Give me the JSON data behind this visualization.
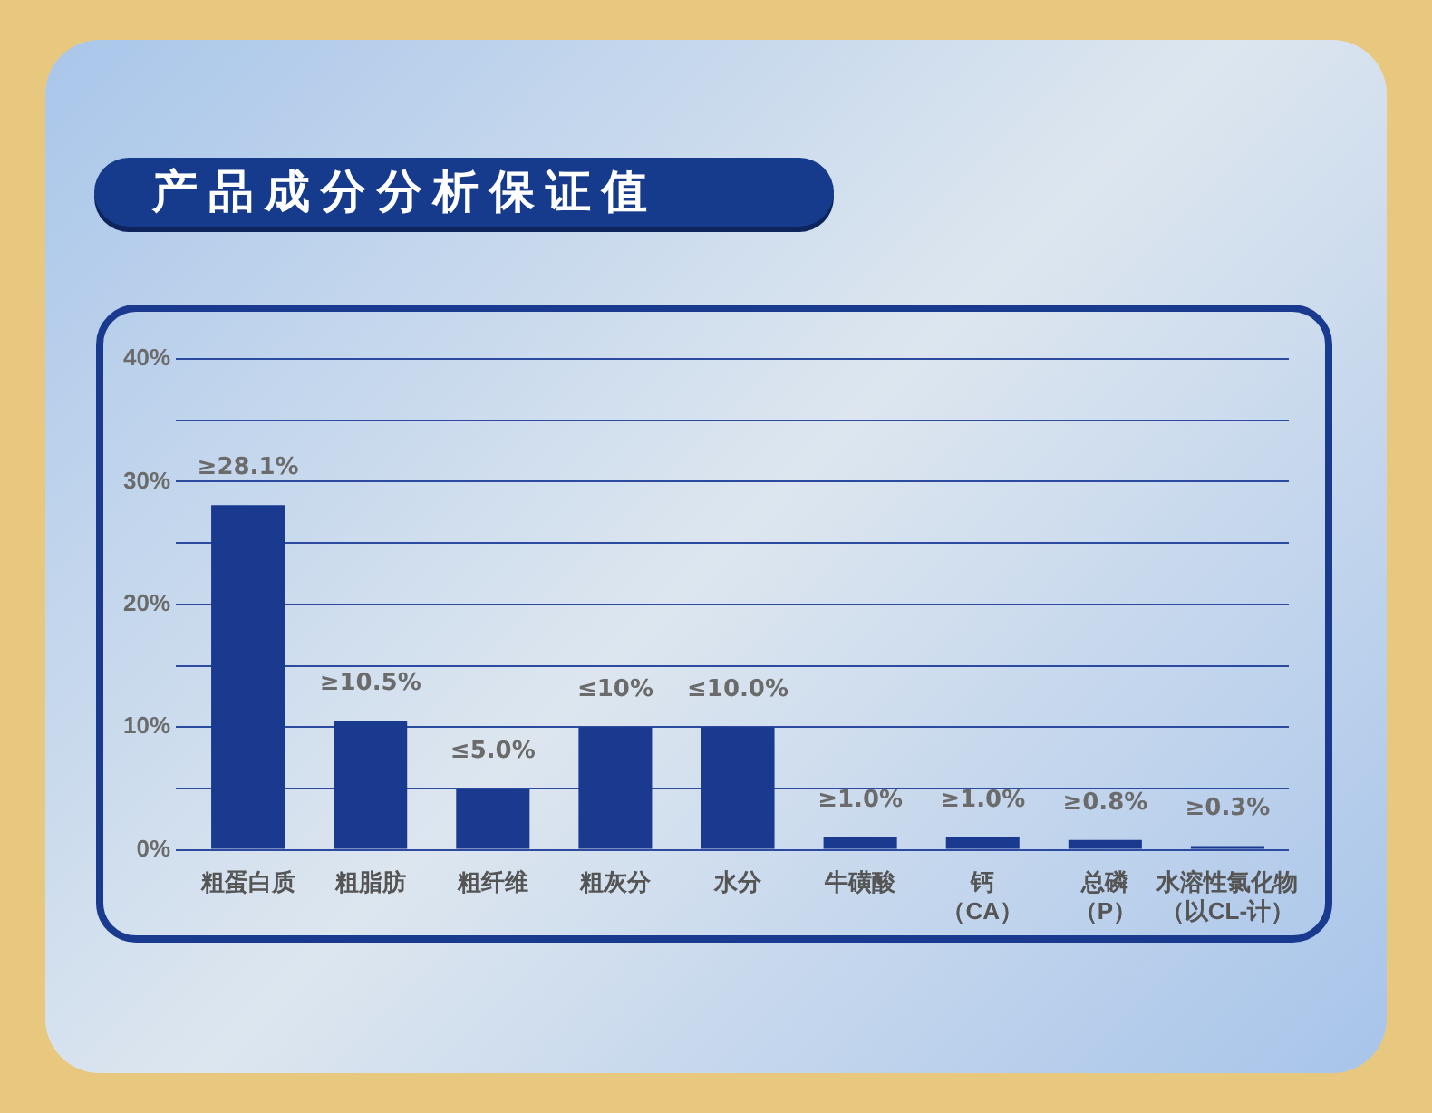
{
  "chart_data": {
    "type": "bar",
    "title": "产品成分分析保证值",
    "categories": [
      "粗蛋白质",
      "粗脂肪",
      "粗纤维",
      "粗灰分",
      "水分",
      "牛磺酸",
      "钙（CA）",
      "总磷（P）",
      "水溶性氯化物（以CL-计）"
    ],
    "values": [
      28.1,
      10.5,
      5.0,
      10,
      10.0,
      1.0,
      1.0,
      0.8,
      0.3
    ],
    "value_labels": [
      "≥28.1%",
      "≥10.5%",
      "≤5.0%",
      "≤10%",
      "≤10.0%",
      "≥1.0%",
      "≥1.0%",
      "≥0.8%",
      "≥0.3%"
    ],
    "color": "#1a3a8f",
    "ylim": [
      0,
      40
    ],
    "yticks": [
      {
        "value": 0,
        "label": "0%"
      },
      {
        "value": 5,
        "label": null
      },
      {
        "value": 10,
        "label": "10%"
      },
      {
        "value": 15,
        "label": null
      },
      {
        "value": 20,
        "label": "20%"
      },
      {
        "value": 25,
        "label": null
      },
      {
        "value": 30,
        "label": "30%"
      },
      {
        "value": 35,
        "label": null
      },
      {
        "value": 40,
        "label": "40%"
      }
    ],
    "grid": true
  }
}
